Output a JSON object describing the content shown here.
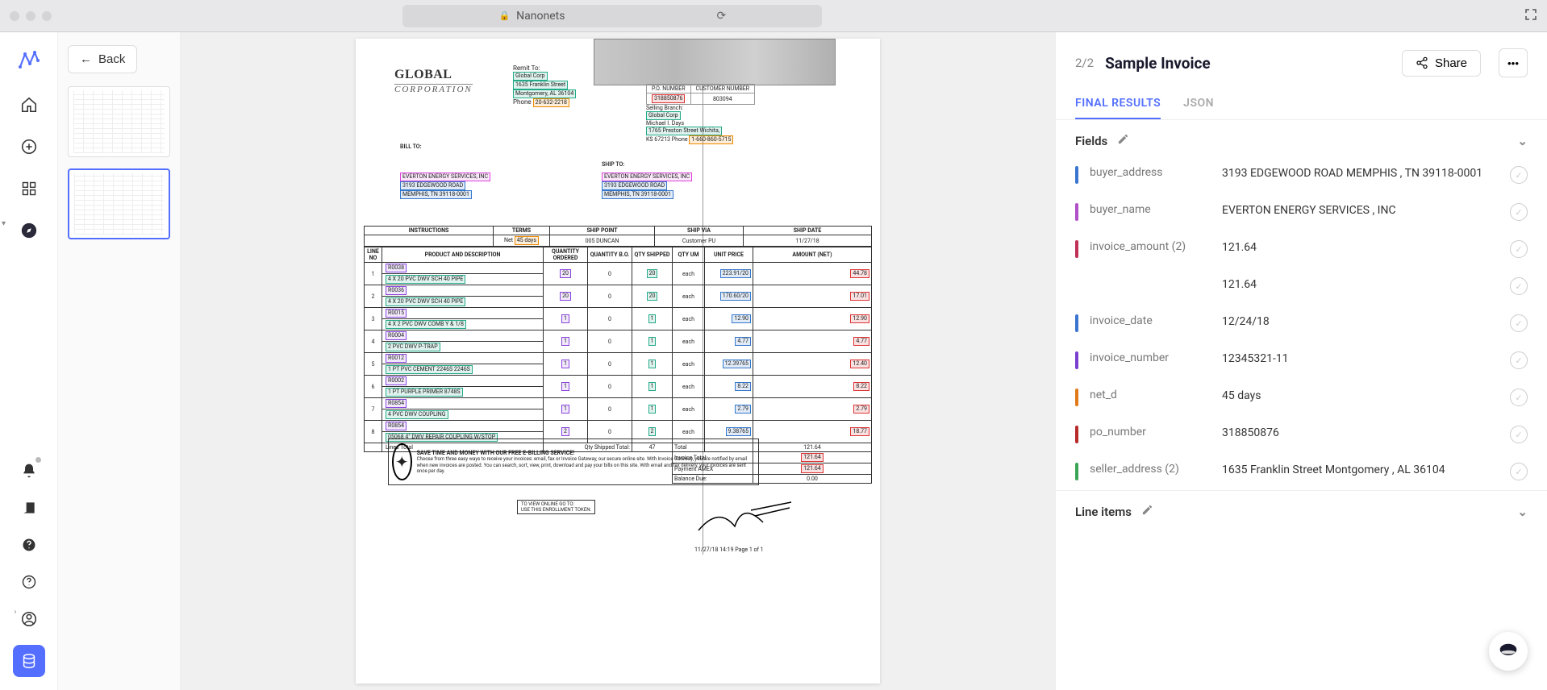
{
  "browser": {
    "site": "Nanonets"
  },
  "backLabel": "Back",
  "pageCounter": "2/2",
  "docTitle": "Sample Invoice",
  "shareLabel": "Share",
  "tabs": {
    "final": "FINAL RESULTS",
    "json": "JSON"
  },
  "sections": {
    "fields": "Fields",
    "lineItems": "Line items"
  },
  "fields": [
    {
      "key": "buyer_address",
      "val": "3193 EDGEWOOD ROAD MEMPHIS , TN 39118-0001",
      "color": "#3a76d0"
    },
    {
      "key": "buyer_name",
      "val": "EVERTON ENERGY SERVICES , INC",
      "color": "#b14fc9"
    },
    {
      "key": "invoice_amount (2)",
      "val": "121.64",
      "color": "#c03057"
    },
    {
      "key": "",
      "val": "121.64",
      "color": "transparent"
    },
    {
      "key": "invoice_date",
      "val": "12/24/18",
      "color": "#3a76d0"
    },
    {
      "key": "invoice_number",
      "val": "12345321-11",
      "color": "#7a3fd0"
    },
    {
      "key": "net_d",
      "val": "45 days",
      "color": "#e07a1a"
    },
    {
      "key": "po_number",
      "val": "318850876",
      "color": "#b92a2a"
    },
    {
      "key": "seller_address (2)",
      "val": "1635 Franklin Street Montgomery , AL 36104",
      "color": "#3aa655"
    }
  ],
  "invoice": {
    "logoMain": "GLOBAL",
    "logoSub": "CORPORATION",
    "remitLabel": "Remit To:",
    "remitName": "Global Corp",
    "remitAddr1": "1635 Franklin Street",
    "remitAddr2": "Montgomery, AL 36104",
    "remitPhone": "Phone",
    "remitPhoneVal": "20-632-2218",
    "poNumberLbl": "P.O. NUMBER",
    "custNumberLbl": "CUSTOMER NUMBER",
    "poNumber": "318850876",
    "custNumber": "803094",
    "sellingBranch": "Selling Branch:",
    "sellingName": "Global Corp",
    "sellingContact": "Michael I. Days",
    "sellingAddr": "1765 Preston Street Wichita,",
    "sellingCity": "KS 67213 Phone",
    "sellingPhone": "1-660-860-5715",
    "billToLbl": "BILL TO:",
    "shipToLbl": "SHIP TO:",
    "billName": "EVERTON ENERGY SERVICES, INC",
    "billAddr": "3193 EDGEWOOD ROAD",
    "billCity": "MEMPHIS, TN 39118-0001",
    "shipName": "EVERTON ENERGY SERVICES, INC",
    "shipAddr": "3193 EDGEWOOD ROAD",
    "shipCity": "MEMPHIS, TN 39118-0001",
    "hdrInstructions": "INSTRUCTIONS",
    "hdrTerms": "TERMS",
    "hdrShipPoint": "SHIP POINT",
    "hdrShipVia": "SHIP VIA",
    "hdrShipDate": "SHIP DATE",
    "termsVal": "Net",
    "termsDays": "45 days",
    "shipPoint": "005 DUNCAN",
    "shipVia": "Customer PU",
    "shipDate": "11/27/18",
    "colLineNo": "LINE NO",
    "colProduct": "PRODUCT AND DESCRIPTION",
    "colQtyOrd": "QUANTITY ORDERED",
    "colQtyBO": "QUANTITY B.O.",
    "colQtyShip": "QTY SHIPPED",
    "colUM": "QTY UM",
    "colUnitPrice": "UNIT PRICE",
    "colAmount": "AMOUNT (NET)",
    "lines": [
      {
        "n": "1",
        "code": "R0038",
        "desc": "4 X 20 PVC DWV SCH 40 PIPE",
        "qo": "20",
        "bo": "0",
        "qs": "20",
        "um": "each",
        "up": "223.91/20",
        "amt": "44.78"
      },
      {
        "n": "2",
        "code": "R0036",
        "desc": "4 X 20 PVC DWV SCH 40 PIPE",
        "qo": "20",
        "bo": "0",
        "qs": "20",
        "um": "each",
        "up": "170.60/20",
        "amt": "17.01"
      },
      {
        "n": "3",
        "code": "R0015",
        "desc": "4 X 2 PVC DWV COMB Y & 1/8",
        "qo": "1",
        "bo": "0",
        "qs": "1",
        "um": "each",
        "up": "12.90",
        "amt": "12.90"
      },
      {
        "n": "4",
        "code": "R0004",
        "desc": "2 PVC DWV P-TRAP",
        "qo": "1",
        "bo": "0",
        "qs": "1",
        "um": "each",
        "up": "4.77",
        "amt": "4.77"
      },
      {
        "n": "5",
        "code": "R0012",
        "desc": "1 PT PVC CEMENT 2246S 2246S",
        "qo": "1",
        "bo": "0",
        "qs": "1",
        "um": "each",
        "up": "12.39765",
        "amt": "12.40"
      },
      {
        "n": "6",
        "code": "R0002",
        "desc": "1 PT PURPLE PRIMER 8748S",
        "qo": "1",
        "bo": "0",
        "qs": "1",
        "um": "each",
        "up": "8.22",
        "amt": "8.22"
      },
      {
        "n": "7",
        "code": "R0854",
        "desc": "4 PVC DWV COUPLING",
        "qo": "1",
        "bo": "0",
        "qs": "1",
        "um": "each",
        "up": "2.79",
        "amt": "2.79"
      },
      {
        "n": "8",
        "code": "R0854",
        "desc": "05068 4\" DWV REPAIR COUPLING W/STOP",
        "qo": "2",
        "bo": "0",
        "qs": "2",
        "um": "each",
        "up": "9.38765",
        "amt": "18.77"
      }
    ],
    "linesTotalLbl": "Lines Total",
    "qtyShipTotalLbl": "Qty Shipped Total:",
    "qtyShipTotal": "47",
    "totalLbl": "Total",
    "invoiceTotalLbl": "Invoice Total:",
    "paymentLbl": "Payment AMEX",
    "balanceLbl": "Balance Due:",
    "total1": "121.64",
    "total2": "121.64",
    "total3": "121.64",
    "balance": "0.00",
    "ebillingTitle": "SAVE TIME AND MONEY WITH OUR FREE E-BILLING SERVICE!",
    "ebillingBody": "Choose from three easy ways to receive your invoices: email, fax or Invoice Gateway, our secure online site. With Invoice Gateway, you are notified by email when new invoices are posted. You can search, sort, view, print, download and pay your bills on this site. With email and fax delivery, your invoices are sent once per day.",
    "enrollLine1": "TO VIEW ONLINE GO TO:",
    "enrollLine2": "USE THIS ENROLLMENT TOKEN:",
    "footer": "11/27/18 14:19   Page 1 of 1"
  }
}
